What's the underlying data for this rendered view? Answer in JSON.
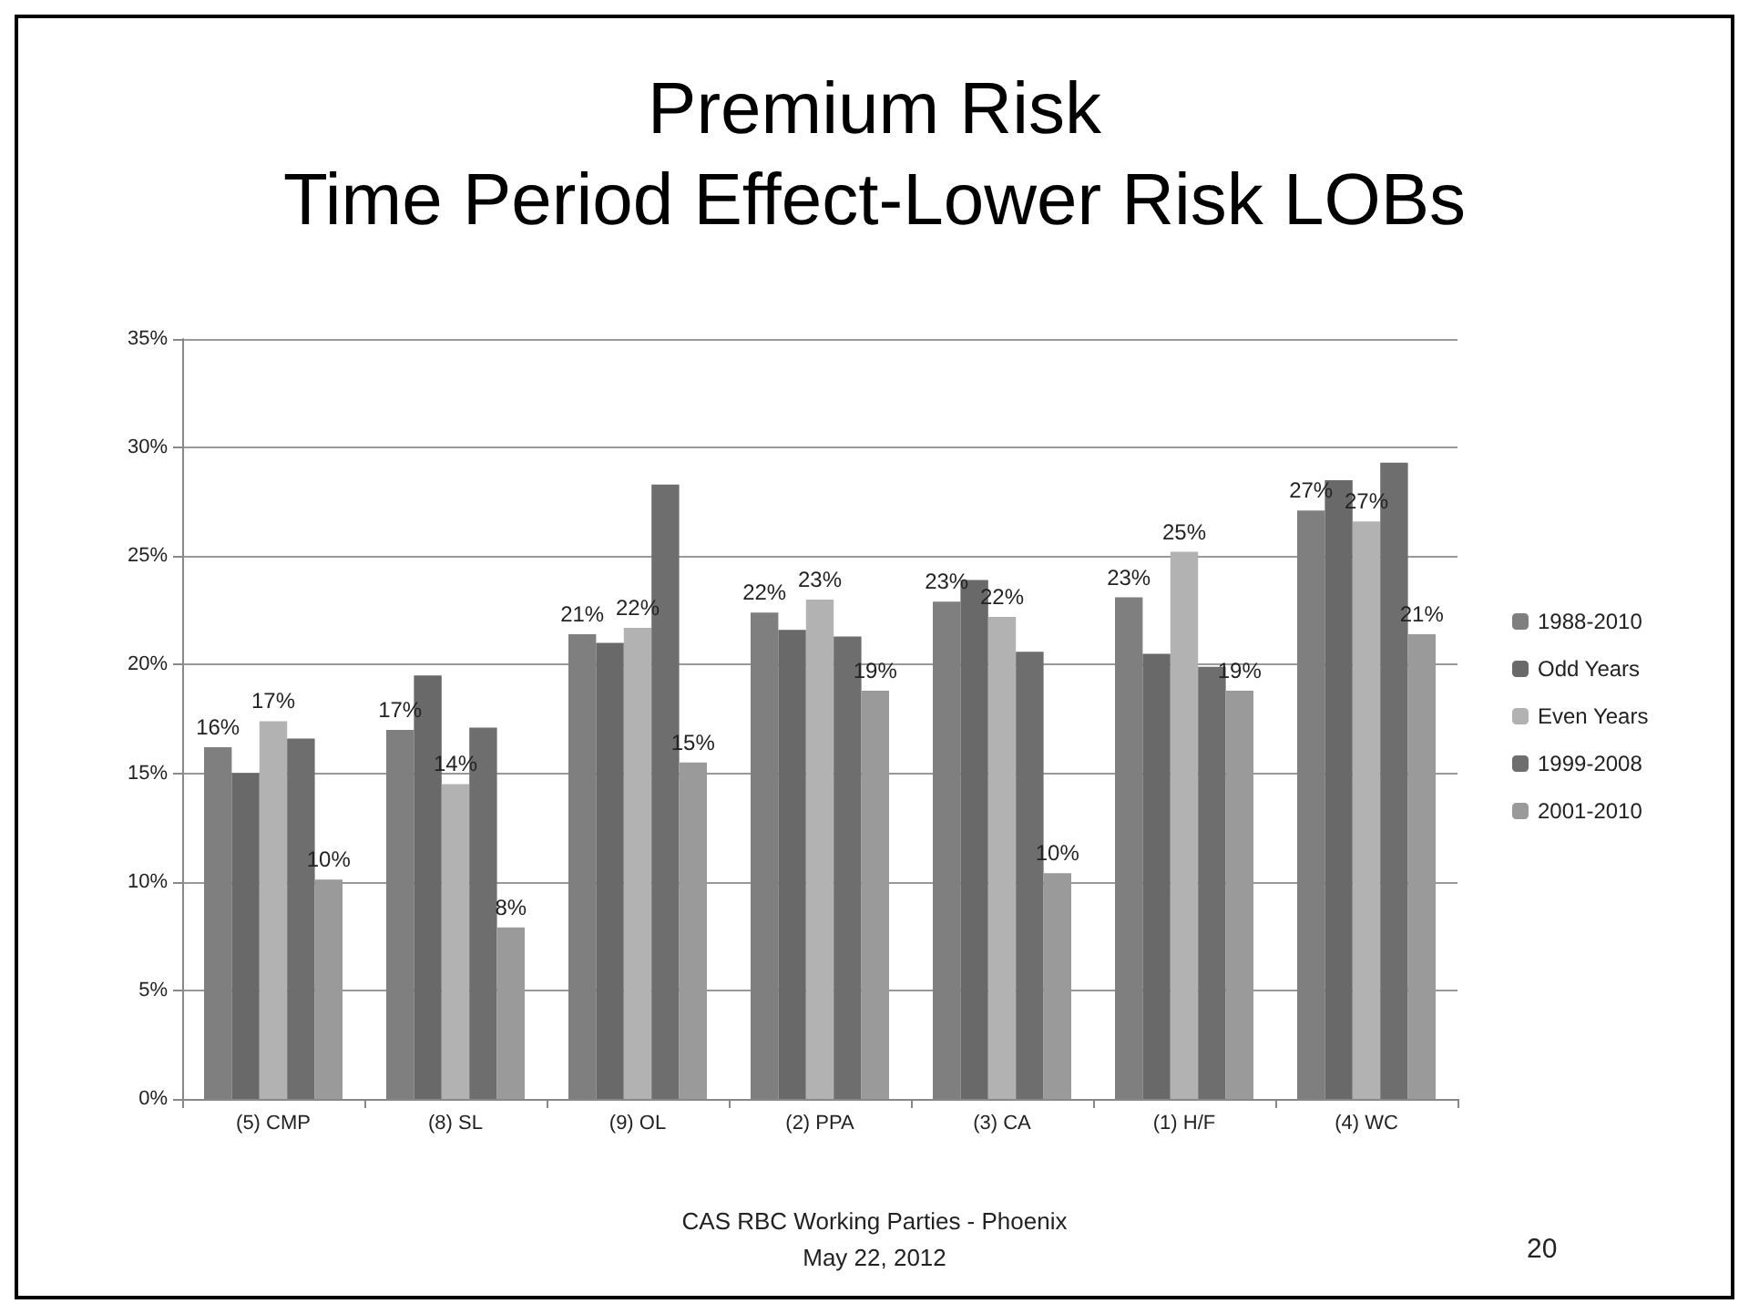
{
  "chart_data": {
    "type": "bar",
    "title": "Premium Risk\nTime Period Effect-Lower Risk LOBs",
    "categories": [
      "(5) CMP",
      "(8) SL",
      "(9) OL",
      "(2) PPA",
      "(3) CA",
      "(1) H/F",
      "(4) WC"
    ],
    "series": [
      {
        "name": "1988-2010",
        "color": "#7f7f7f",
        "values": [
          16.2,
          17.0,
          21.4,
          22.4,
          22.9,
          23.1,
          27.1
        ],
        "value_labels": [
          "16%",
          "17%",
          "21%",
          "22%",
          "23%",
          "23%",
          "27%"
        ]
      },
      {
        "name": "Odd Years",
        "color": "#696969",
        "values": [
          15.0,
          19.5,
          21.0,
          21.6,
          23.9,
          20.5,
          28.5
        ]
      },
      {
        "name": "Even Years",
        "color": "#b2b2b2",
        "values": [
          17.4,
          14.5,
          21.7,
          23.0,
          22.2,
          25.2,
          26.6
        ],
        "value_labels": [
          "17%",
          "14%",
          "22%",
          "23%",
          "22%",
          "25%",
          "27%"
        ]
      },
      {
        "name": "1999-2008",
        "color": "#6e6e6e",
        "values": [
          16.6,
          17.1,
          28.3,
          21.3,
          20.6,
          19.9,
          29.3
        ]
      },
      {
        "name": "2001-2010",
        "color": "#9a9a9a",
        "values": [
          10.1,
          7.9,
          15.5,
          18.8,
          10.4,
          18.8,
          21.4
        ],
        "value_labels": [
          "10%",
          "8%",
          "15%",
          "19%",
          "10%",
          "19%",
          "21%"
        ]
      }
    ],
    "ylim": [
      0,
      35
    ],
    "yticks": [
      {
        "value": 0,
        "label": "0%"
      },
      {
        "value": 5,
        "label": "5%"
      },
      {
        "value": 10,
        "label": "10%"
      },
      {
        "value": 15,
        "label": "15%"
      },
      {
        "value": 20,
        "label": "20%"
      },
      {
        "value": 25,
        "label": "25%"
      },
      {
        "value": 30,
        "label": "30%"
      },
      {
        "value": 35,
        "label": "35%"
      }
    ],
    "grid": "y",
    "legend": "right",
    "annotations": [
      "CAS RBC Working Parties - Phoenix\nMay 22, 2012",
      "20"
    ]
  }
}
